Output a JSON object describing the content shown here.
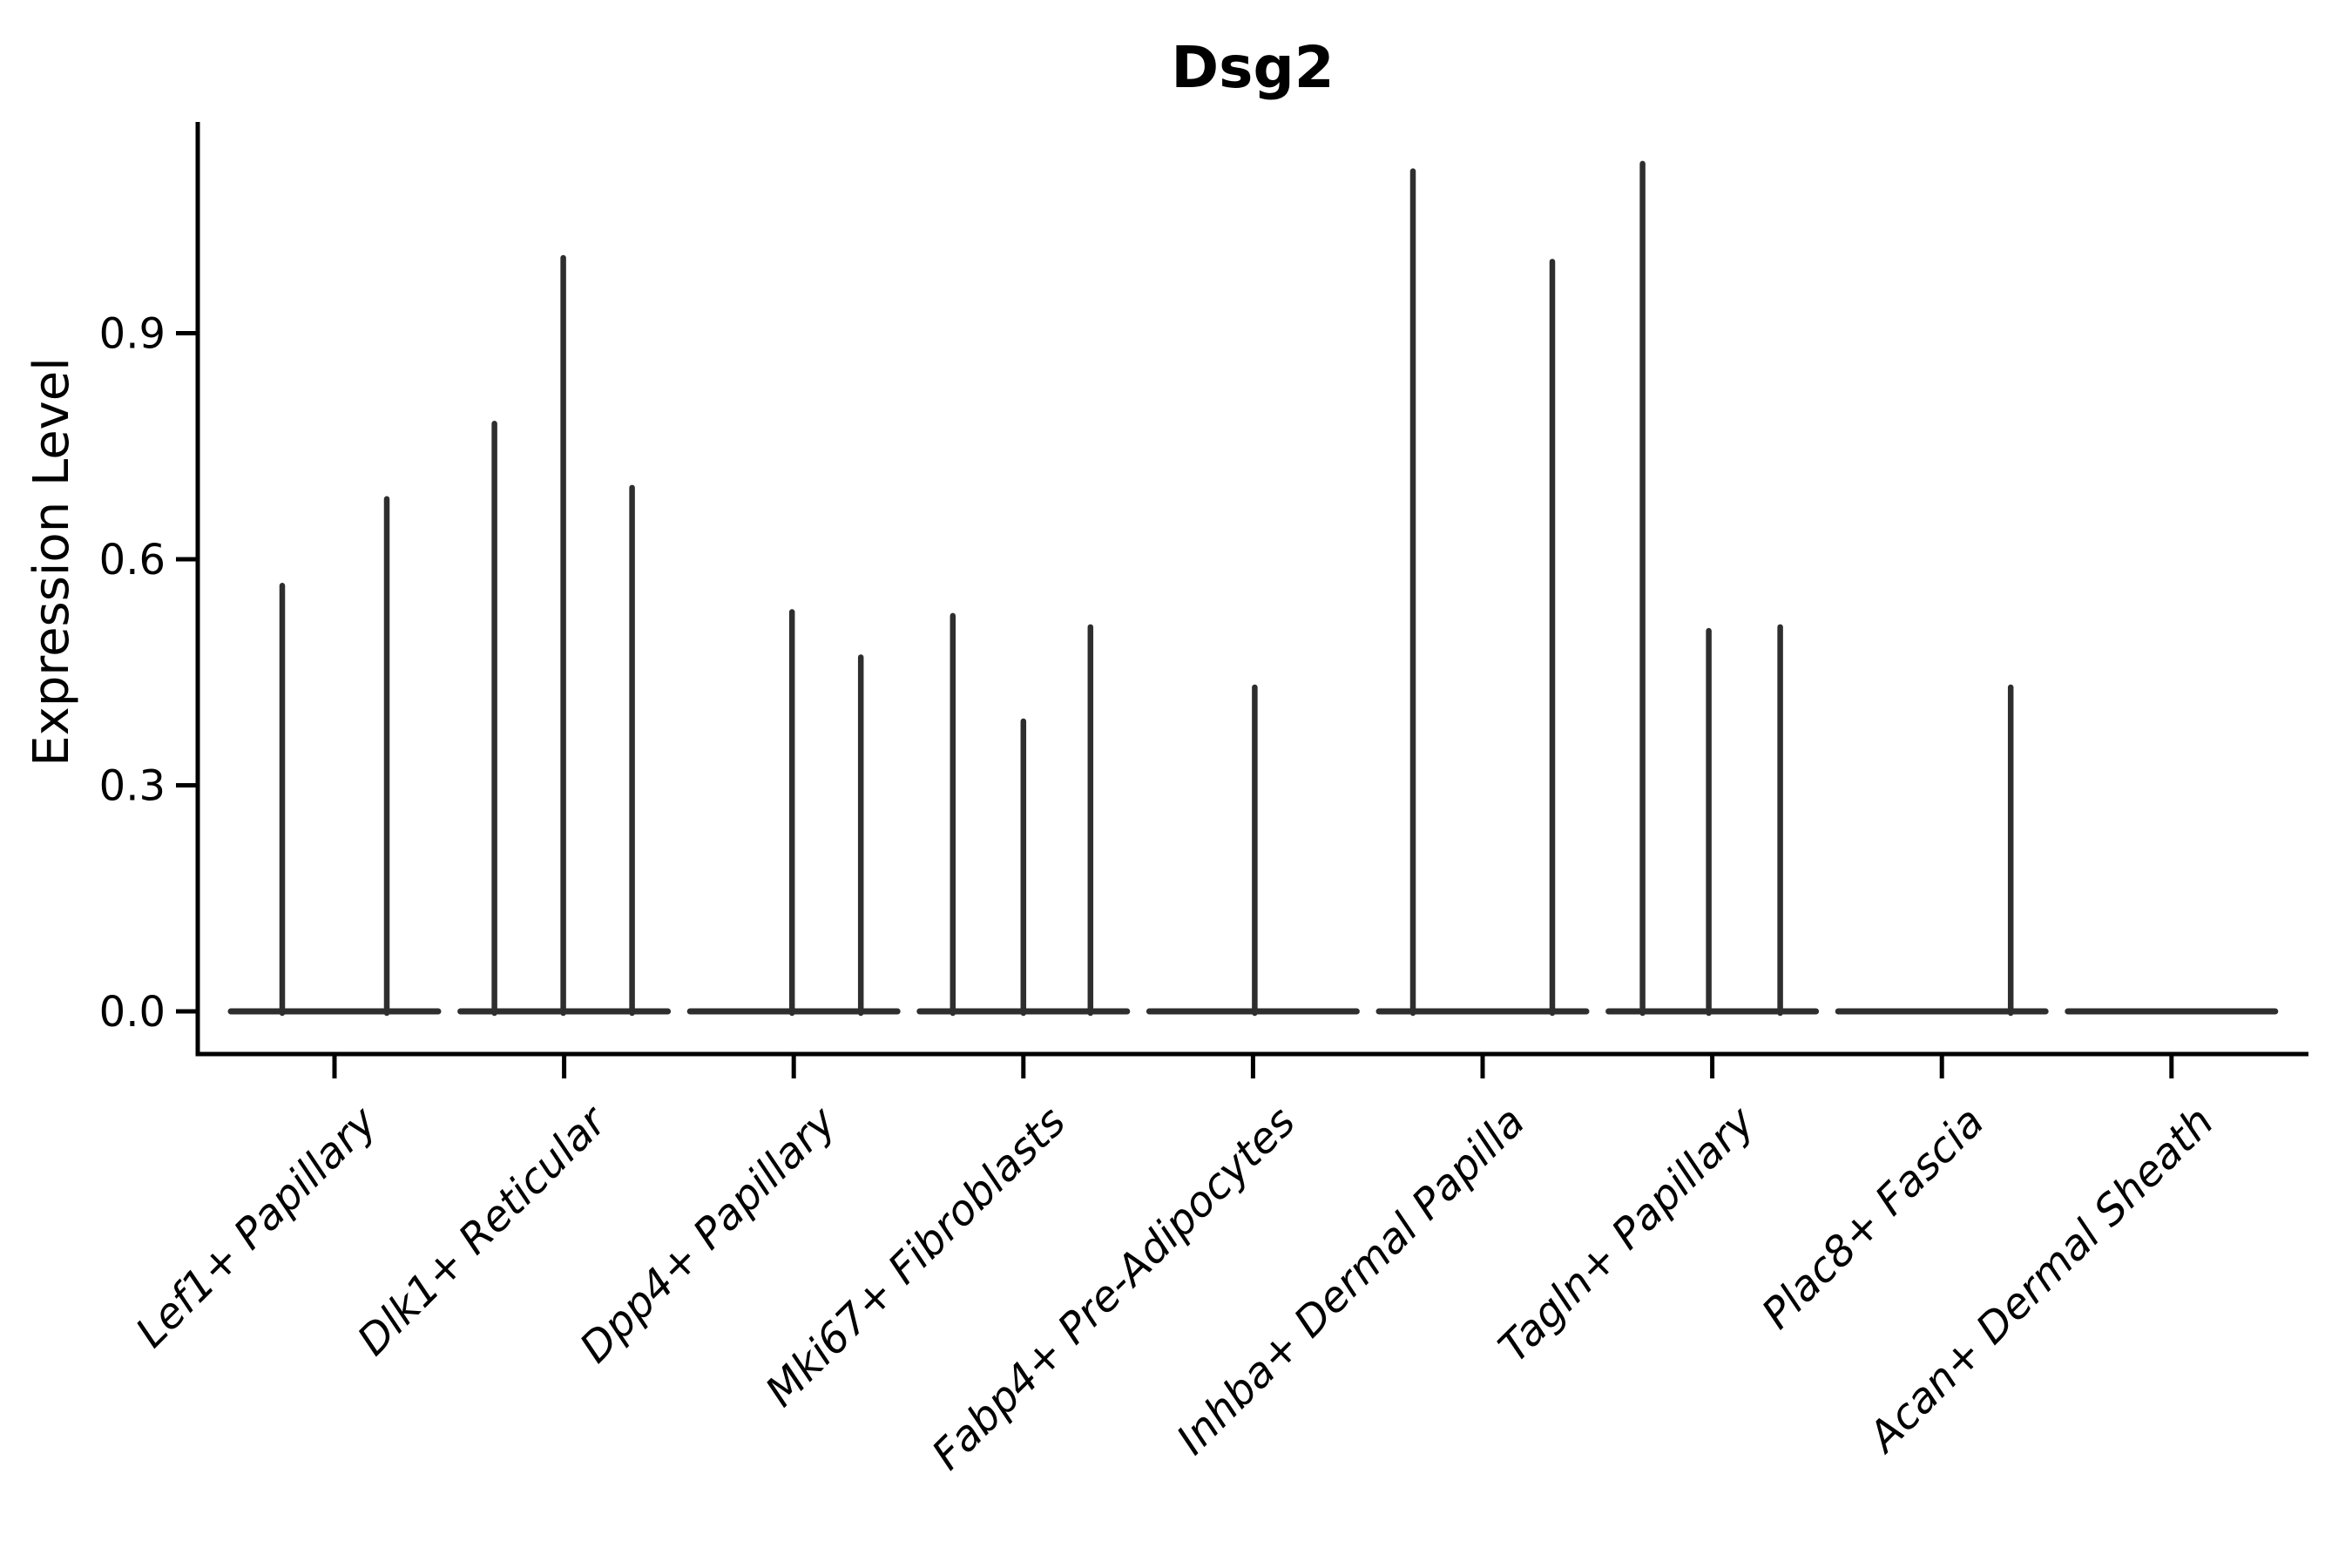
{
  "chart_data": {
    "type": "violin",
    "title": "Dsg2",
    "xlabel": "",
    "ylabel": "Expression Level",
    "yticks": [
      "0.0",
      "0.3",
      "0.6",
      "0.9"
    ],
    "ytick_values": [
      0.0,
      0.3,
      0.6,
      0.9
    ],
    "ylim": [
      -0.055,
      1.18
    ],
    "grid": false,
    "legend": "none",
    "description": "Needle-thin violins: each cell-type category shows a flat density base at 0 with thin spikes rising to the maximum expression of each sub-group",
    "colors": {
      "violin_stroke": "#2e2e2e",
      "axis_stroke": "#000000",
      "background": "#ffffff"
    },
    "categories": [
      {
        "label": "Lef1+ Papillary",
        "needles": [
          {
            "dx": -60,
            "value": 0.565
          },
          {
            "dx": 60,
            "value": 0.68
          }
        ]
      },
      {
        "label": "Dlk1+ Reticular",
        "needles": [
          {
            "dx": -80,
            "value": 0.78
          },
          {
            "dx": -1,
            "value": 1.0
          },
          {
            "dx": 78,
            "value": 0.695
          }
        ]
      },
      {
        "label": "Dpp4+ Papillary",
        "needles": [
          {
            "dx": -2,
            "value": 0.53
          },
          {
            "dx": 77,
            "value": 0.47
          }
        ]
      },
      {
        "label": "Mki67+ Fibroblasts",
        "needles": [
          {
            "dx": -81,
            "value": 0.525
          },
          {
            "dx": 0,
            "value": 0.385
          },
          {
            "dx": 77,
            "value": 0.51
          }
        ]
      },
      {
        "label": "Fabp4+ Pre-Adipocytes",
        "needles": [
          {
            "dx": 2,
            "value": 0.43
          }
        ]
      },
      {
        "label": "Inhba+ Dermal Papilla",
        "needles": [
          {
            "dx": -80,
            "value": 1.115
          },
          {
            "dx": 80,
            "value": 0.995
          }
        ]
      },
      {
        "label": "Tagln+ Papillary",
        "needles": [
          {
            "dx": -80,
            "value": 1.125
          },
          {
            "dx": -4,
            "value": 0.505
          },
          {
            "dx": 78,
            "value": 0.51
          }
        ]
      },
      {
        "label": "Plac8+ Fascia",
        "needles": [
          {
            "dx": 79,
            "value": 0.43
          }
        ]
      },
      {
        "label": "Acan+ Dermal Sheath",
        "needles": []
      }
    ]
  }
}
